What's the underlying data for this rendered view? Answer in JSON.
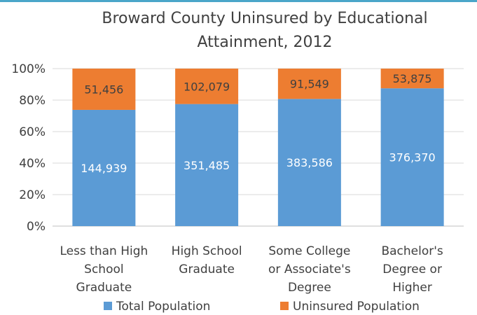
{
  "chart_data": {
    "type": "bar",
    "stacked": "percent",
    "title": "Broward County Uninsured by Educational Attainment, 2012",
    "title_lines": [
      "Broward County Uninsured by Educational",
      "Attainment, 2012"
    ],
    "categories": [
      "Less than High School Graduate",
      "High School Graduate",
      "Some College or Associate's Degree",
      "Bachelor's Degree or Higher"
    ],
    "category_lines": [
      [
        "Less than High",
        "School",
        "Graduate"
      ],
      [
        "High School",
        "Graduate"
      ],
      [
        "Some College",
        "or Associate's",
        "Degree"
      ],
      [
        "Bachelor's",
        "Degree or",
        "Higher"
      ]
    ],
    "series": [
      {
        "name": "Total Population",
        "color": "#5b9bd5",
        "values": [
          144939,
          351485,
          383586,
          376370
        ],
        "labels": [
          "144,939",
          "351,485",
          "383,586",
          "376,370"
        ]
      },
      {
        "name": "Uninsured Population",
        "color": "#ed7d31",
        "values": [
          51456,
          102079,
          91549,
          53875
        ],
        "labels": [
          "51,456",
          "102,079",
          "91,549",
          "53,875"
        ]
      }
    ],
    "y_ticks": [
      "0%",
      "20%",
      "40%",
      "60%",
      "80%",
      "100%"
    ],
    "ylim": [
      0,
      100
    ],
    "grid": true,
    "legend_position": "bottom"
  }
}
